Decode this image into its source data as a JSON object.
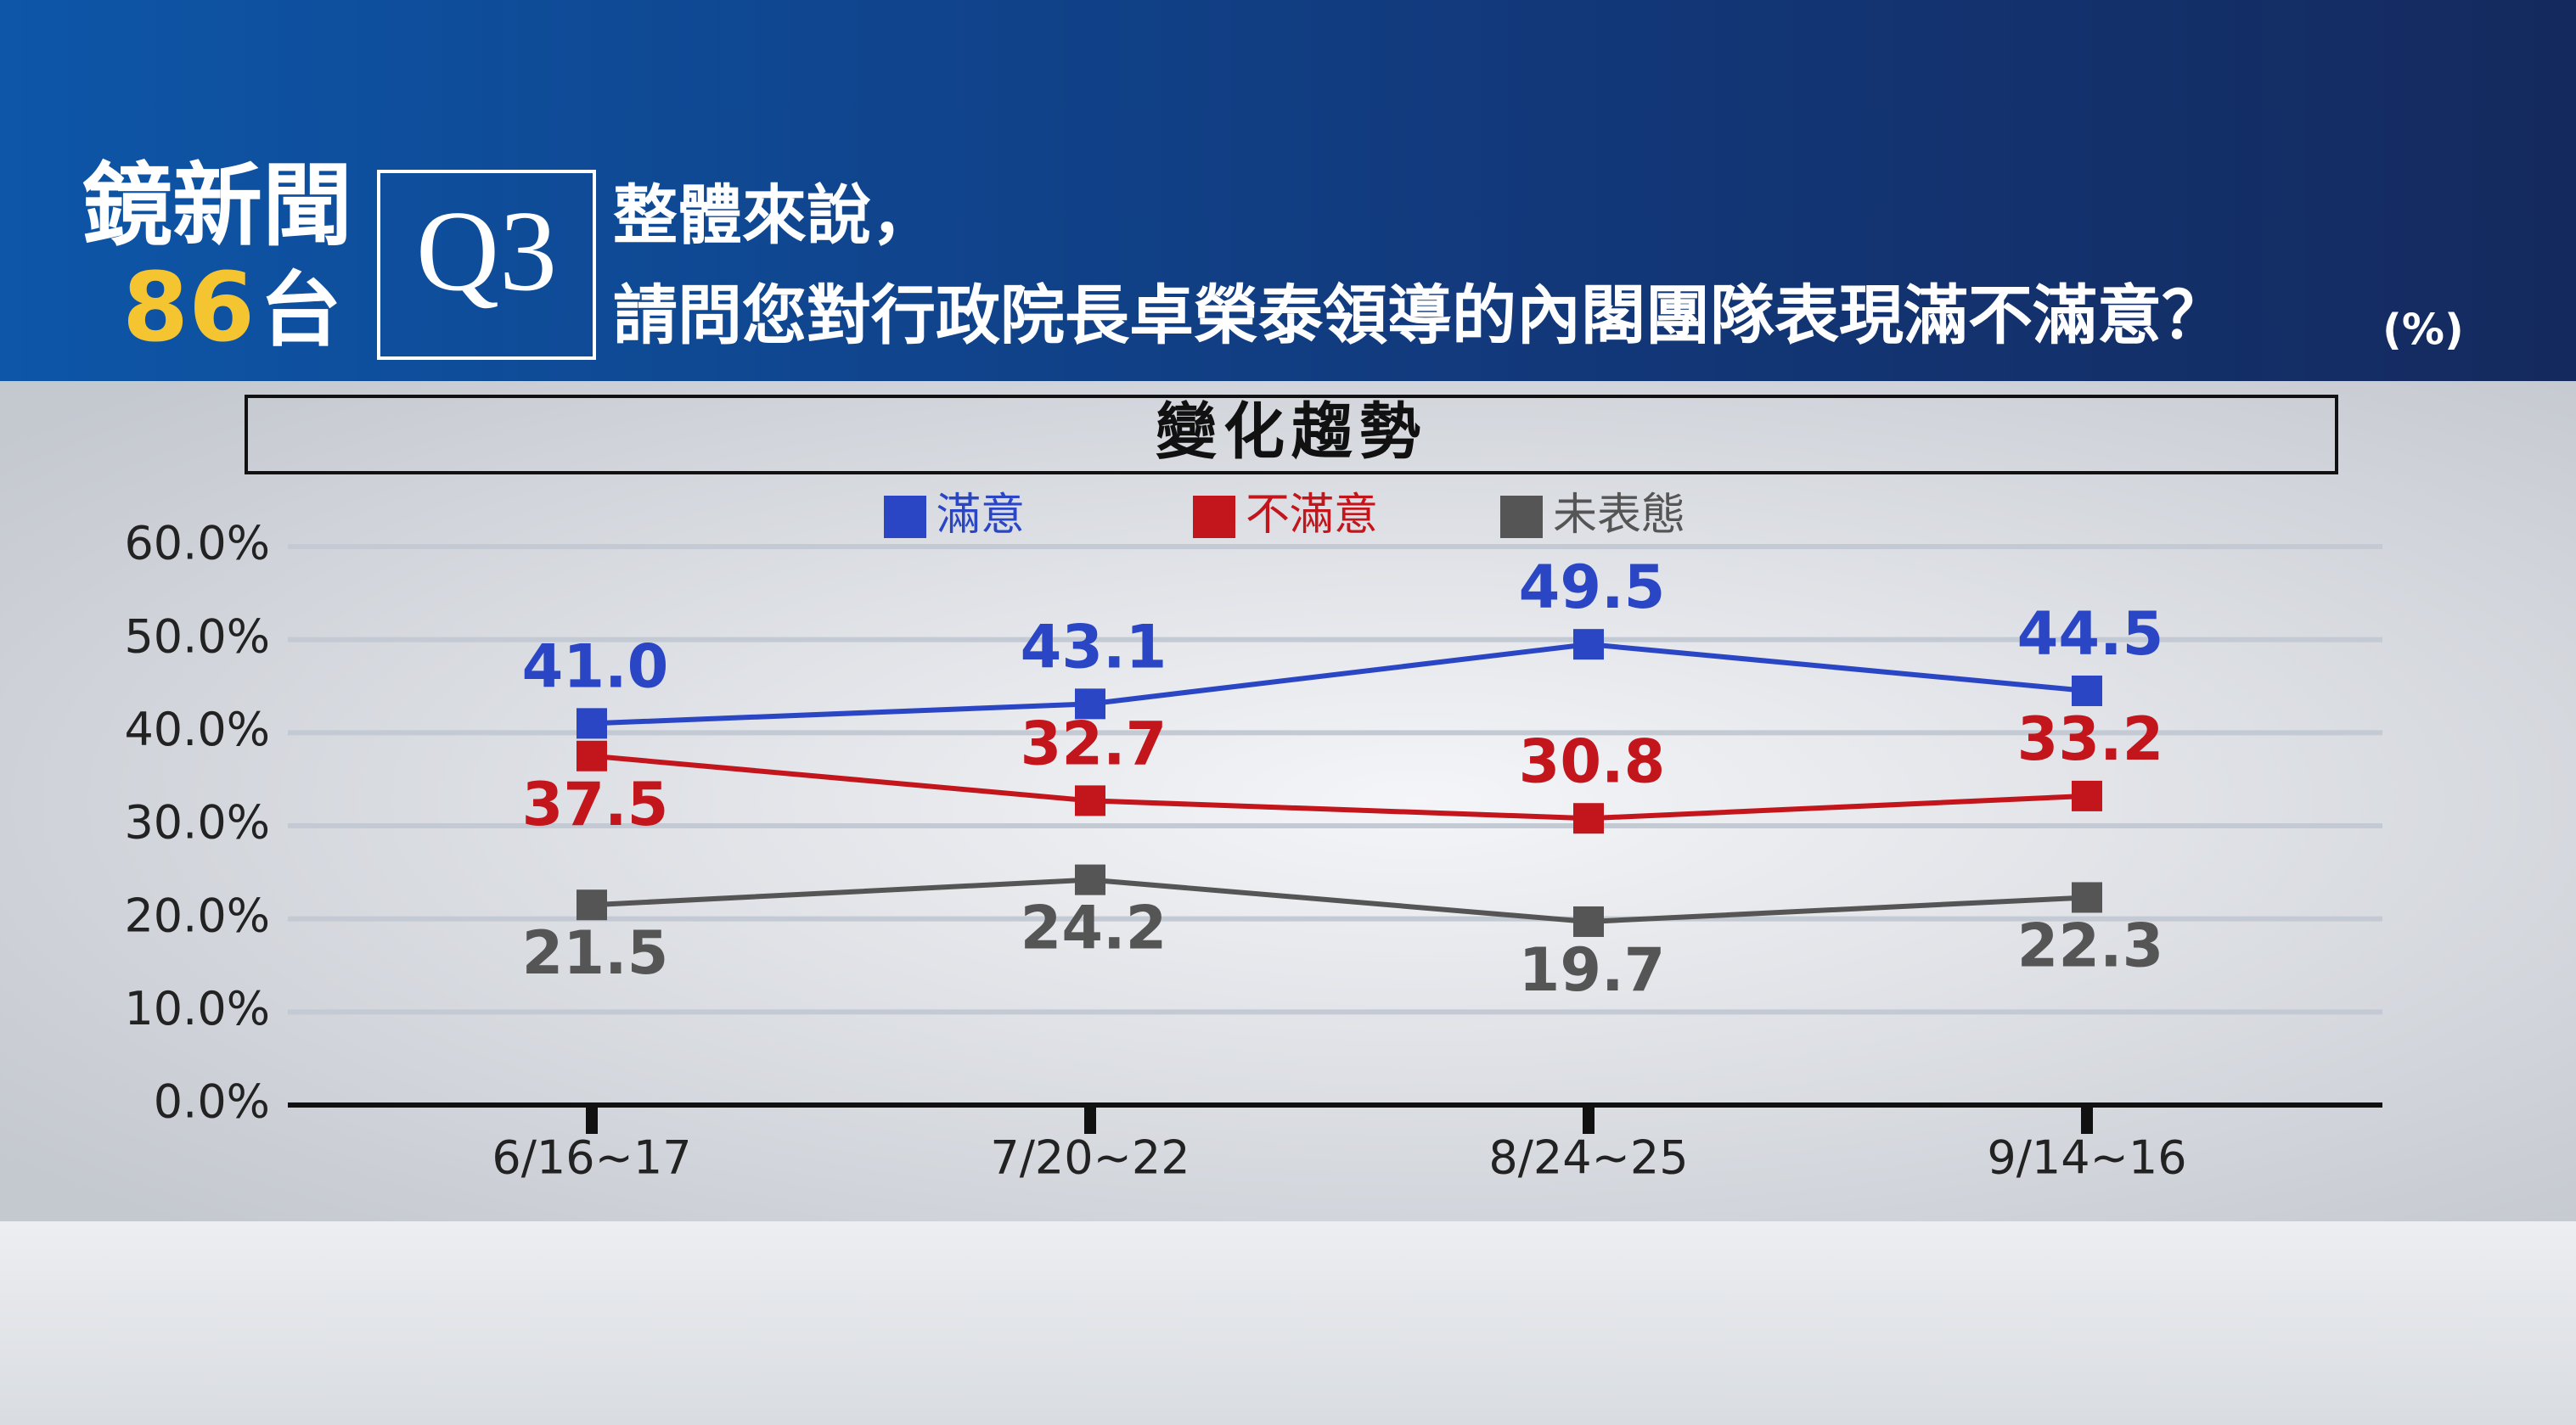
{
  "header": {
    "brand_name": "鏡新聞",
    "brand_number": "86",
    "brand_suffix": "台",
    "question_no": "Q3",
    "question_line1": "整體來說，",
    "question_line2": "請問您對行政院長卓榮泰領導的內閣團隊表現滿不滿意？",
    "unit": "(%)"
  },
  "chart_data": {
    "type": "line",
    "title": "變化趨勢",
    "categories": [
      "6/16~17",
      "7/20~22",
      "8/24~25",
      "9/14~16"
    ],
    "series": [
      {
        "name": "滿意",
        "color": "#2a46c4",
        "values": [
          41.0,
          43.1,
          49.5,
          44.5
        ],
        "value_labels": [
          "41.0",
          "43.1",
          "49.5",
          "44.5"
        ]
      },
      {
        "name": "不滿意",
        "color": "#c3161c",
        "values": [
          37.5,
          32.7,
          30.8,
          33.2
        ],
        "value_labels": [
          "37.5",
          "32.7",
          "30.8",
          "33.2"
        ]
      },
      {
        "name": "未表態",
        "color": "#555555",
        "values": [
          21.5,
          24.2,
          19.7,
          22.3
        ],
        "value_labels": [
          "21.5",
          "24.2",
          "19.7",
          "22.3"
        ]
      }
    ],
    "ylim": [
      0,
      60
    ],
    "yticks": [
      {
        "value": 0,
        "label": "0.0%"
      },
      {
        "value": 10,
        "label": "10.0%"
      },
      {
        "value": 20,
        "label": "20.0%"
      },
      {
        "value": 30,
        "label": "30.0%"
      },
      {
        "value": 40,
        "label": "40.0%"
      },
      {
        "value": 50,
        "label": "50.0%"
      },
      {
        "value": 60,
        "label": "60.0%"
      }
    ],
    "grid": true,
    "legend": "top"
  }
}
